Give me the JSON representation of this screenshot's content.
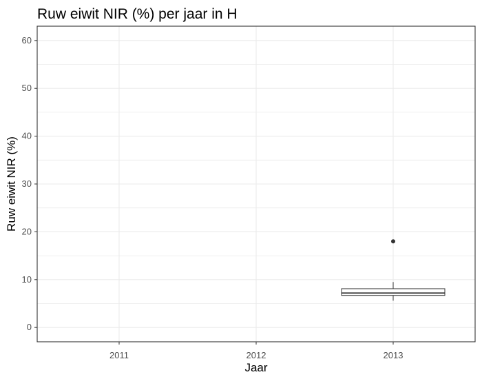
{
  "chart_data": {
    "type": "boxplot",
    "title": "Ruw eiwit NIR (%) per jaar in H",
    "xlabel": "Jaar",
    "ylabel": "Ruw eiwit NIR (%)",
    "categories": [
      "2011",
      "2012",
      "2013"
    ],
    "ylim": [
      -3,
      63
    ],
    "yticks": [
      0,
      10,
      20,
      30,
      40,
      50,
      60
    ],
    "yticklabels": [
      "0",
      "10",
      "20",
      "30",
      "40",
      "50",
      "60"
    ],
    "grid": true,
    "boxes": [
      {
        "category": "2013",
        "whisker_low": 5.6,
        "q1": 6.7,
        "median": 7.2,
        "q3": 8.1,
        "whisker_high": 9.5,
        "outliers": [
          18
        ]
      }
    ],
    "colors": {
      "background": "#ffffff",
      "grid": "#ebebeb",
      "panel_border": "#333333",
      "box_line": "#333333",
      "text": "#000000",
      "tick_text": "#4d4d4d"
    }
  }
}
